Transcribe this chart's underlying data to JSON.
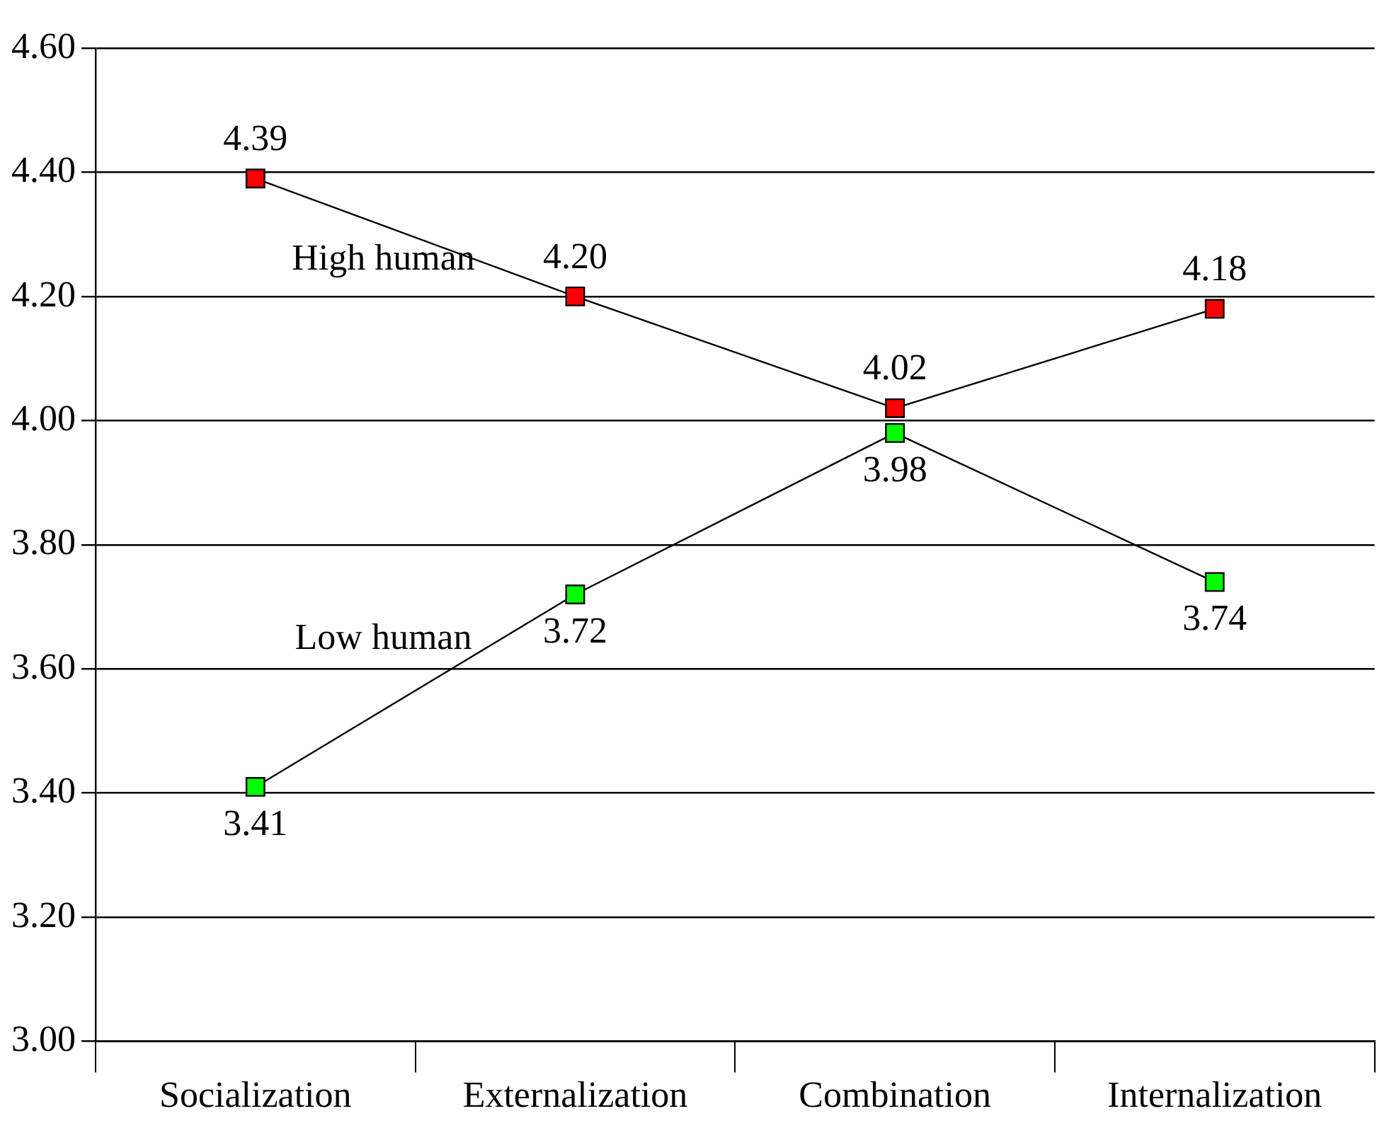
{
  "chart_data": {
    "type": "line",
    "categories": [
      "Socialization",
      "Externalization",
      "Combination",
      "Internalization"
    ],
    "series": [
      {
        "name": "High human",
        "color": "#ff0000",
        "values": [
          4.39,
          4.2,
          4.02,
          4.18
        ],
        "value_labels": [
          "4.39",
          "4.20",
          "4.02",
          "4.18"
        ]
      },
      {
        "name": "Low human",
        "color": "#00ff00",
        "values": [
          3.41,
          3.72,
          3.98,
          3.74
        ],
        "value_labels": [
          "3.41",
          "3.72",
          "3.98",
          "3.74"
        ]
      }
    ],
    "ylim": [
      3.0,
      4.6
    ],
    "yticks": [
      {
        "value": 3.0,
        "label": "3.00"
      },
      {
        "value": 3.2,
        "label": "3.20"
      },
      {
        "value": 3.4,
        "label": "3.40"
      },
      {
        "value": 3.6,
        "label": "3.60"
      },
      {
        "value": 3.8,
        "label": "3.80"
      },
      {
        "value": 4.0,
        "label": "4.00"
      },
      {
        "value": 4.2,
        "label": "4.20"
      },
      {
        "value": 4.4,
        "label": "4.40"
      },
      {
        "value": 4.6,
        "label": "4.60"
      }
    ],
    "grid": "y",
    "marker": "square",
    "line_style": "solid",
    "legend": false
  }
}
